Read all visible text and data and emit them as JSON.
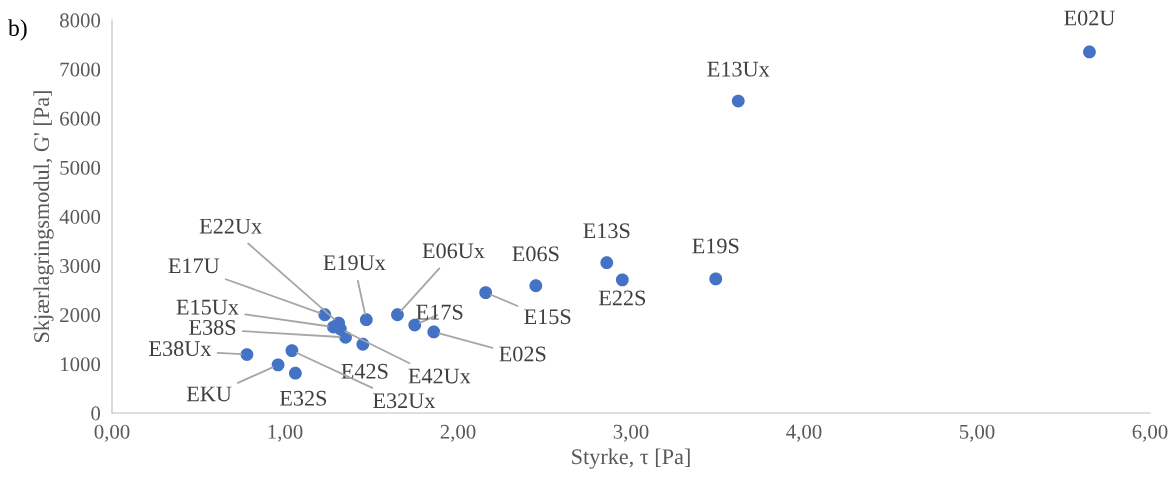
{
  "chart_data": {
    "type": "scatter",
    "xlabel": "Styrke, τ [Pa]",
    "ylabel": "Skjærlagringsmodul, G' [Pa]",
    "xlim": [
      0,
      6
    ],
    "xticks": [
      {
        "value": 0,
        "label": "0,00"
      },
      {
        "value": 1,
        "label": "1,00"
      },
      {
        "value": 2,
        "label": "2,00"
      },
      {
        "value": 3,
        "label": "3,00"
      },
      {
        "value": 4,
        "label": "4,00"
      },
      {
        "value": 5,
        "label": "5,00"
      },
      {
        "value": 6,
        "label": "6,00"
      }
    ],
    "ylim": [
      0,
      8000
    ],
    "yticks": [
      0,
      1000,
      2000,
      3000,
      4000,
      5000,
      6000,
      7000,
      8000
    ],
    "grid": false,
    "marker": "circle",
    "series": [
      {
        "color": "#4472c4",
        "x": [
          5.65,
          3.62,
          2.86,
          3.49,
          2.45,
          2.95,
          2.16,
          1.86,
          1.75,
          1.65,
          1.47,
          1.31,
          1.23,
          1.28,
          1.35,
          1.32,
          1.45,
          0.78,
          0.96,
          1.06,
          1.04
        ],
        "values": [
          7350,
          6350,
          3060,
          2730,
          2590,
          2710,
          2450,
          1650,
          1790,
          2000,
          1900,
          1830,
          2000,
          1750,
          1540,
          1710,
          1400,
          1190,
          980,
          810,
          1270
        ]
      }
    ],
    "annotations": [
      "b)",
      {
        "text": "E02U",
        "x": 5.65,
        "y": 7350
      },
      {
        "text": "E13Ux",
        "x": 3.62,
        "y": 6350
      },
      {
        "text": "E13S",
        "x": 2.86,
        "y": 3060
      },
      {
        "text": "E19S",
        "x": 3.49,
        "y": 2730
      },
      {
        "text": "E06S",
        "x": 2.45,
        "y": 2590
      },
      {
        "text": "E22S",
        "x": 2.95,
        "y": 2710
      },
      {
        "text": "E15S",
        "x": 2.16,
        "y": 2450
      },
      {
        "text": "E02S",
        "x": 1.86,
        "y": 1650
      },
      {
        "text": "E17S",
        "x": 1.75,
        "y": 1790
      },
      {
        "text": "E06Ux",
        "x": 1.65,
        "y": 2000
      },
      {
        "text": "E19Ux",
        "x": 1.47,
        "y": 1900
      },
      {
        "text": "E22Ux",
        "x": 1.31,
        "y": 1830
      },
      {
        "text": "E17U",
        "x": 1.23,
        "y": 2000
      },
      {
        "text": "E15Ux",
        "x": 1.28,
        "y": 1750
      },
      {
        "text": "E38S",
        "x": 1.35,
        "y": 1540
      },
      {
        "text": "E42Ux",
        "x": 1.32,
        "y": 1710
      },
      {
        "text": "E42S",
        "x": 1.45,
        "y": 1400
      },
      {
        "text": "E38Ux",
        "x": 0.78,
        "y": 1190
      },
      {
        "text": "EKU",
        "x": 0.96,
        "y": 980
      },
      {
        "text": "E32S",
        "x": 1.06,
        "y": 810
      },
      {
        "text": "E32Ux",
        "x": 1.04,
        "y": 1270
      }
    ]
  }
}
